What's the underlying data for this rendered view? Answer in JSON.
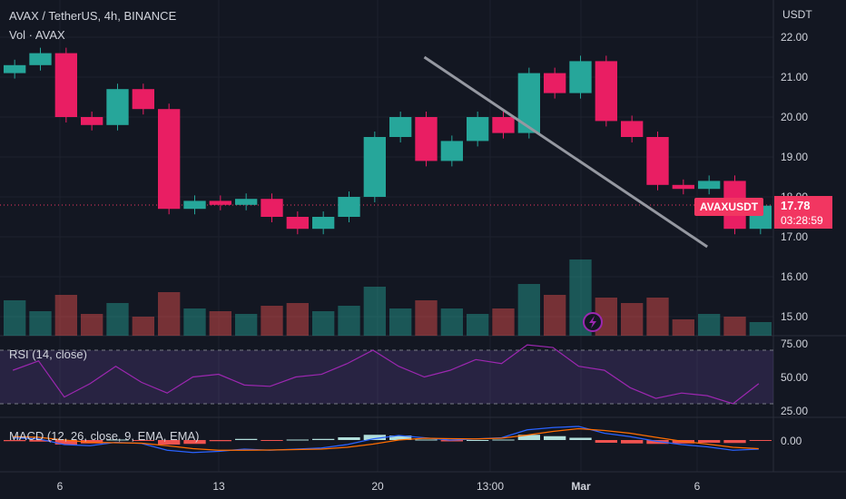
{
  "header": {
    "symbol_line": "AVAX / TetherUS, 4h, BINANCE",
    "volume_label": "Vol · AVAX",
    "rsi_label": "RSI (14, close)",
    "macd_label": "MACD (12, 26, close, 9, EMA, EMA)"
  },
  "price_scale": {
    "currency": "USDT",
    "ticks": [
      "22.00",
      "21.00",
      "20.00",
      "19.00",
      "18.00",
      "17.00",
      "16.00",
      "15.00"
    ]
  },
  "rsi_scale": {
    "ticks": [
      "75.00",
      "50.00",
      "25.00"
    ]
  },
  "macd_scale": {
    "ticks": [
      "0.00"
    ]
  },
  "time_axis": {
    "labels": [
      "6",
      "13",
      "20",
      "13:00",
      "Mar",
      "6"
    ]
  },
  "last_price": {
    "symbol": "AVAXUSDT",
    "price": "17.78",
    "countdown": "03:28:59"
  },
  "colors": {
    "background": "#131722",
    "up": "#26a69a",
    "down": "#ef5350",
    "candle_up": "#26a69a",
    "candle_down": "#e91e63",
    "trendline": "#9598a1",
    "rsi_line": "#9c27b0",
    "rsi_band": "#7e57c2",
    "macd_line": "#2962ff",
    "signal_line": "#ff6d00",
    "badge": "#f23661"
  },
  "icons": {
    "lightning": "lightning-icon"
  },
  "chart_data": {
    "type": "candlestick",
    "price_range": [
      14.8,
      22.2
    ],
    "x": [
      0,
      4,
      8,
      12,
      16,
      20,
      24,
      28,
      32,
      36,
      40,
      44,
      48,
      52,
      56,
      60,
      64,
      68,
      72,
      76,
      80,
      84,
      88,
      92,
      96,
      100,
      104,
      108,
      112,
      116
    ],
    "close": [
      21.3,
      21.6,
      20.0,
      19.8,
      20.7,
      20.2,
      17.7,
      17.9,
      17.8,
      17.95,
      17.5,
      17.2,
      17.5,
      18.0,
      19.5,
      20.0,
      18.9,
      19.4,
      20.0,
      19.6,
      21.1,
      20.6,
      21.4,
      19.9,
      19.5,
      18.3,
      18.2,
      18.4,
      17.2,
      17.78
    ],
    "volume": [
      1.3,
      0.9,
      1.5,
      0.8,
      1.2,
      0.7,
      1.6,
      1.0,
      0.9,
      0.8,
      1.1,
      1.2,
      0.9,
      1.1,
      1.8,
      1.0,
      1.3,
      1.0,
      0.8,
      1.0,
      1.9,
      1.5,
      2.8,
      1.4,
      1.2,
      1.4,
      0.6,
      0.8,
      0.7,
      0.5
    ],
    "trendline": [
      [
        21.5,
        26.5
      ],
      [
        16.75,
        37.5
      ]
    ],
    "rsi": [
      55,
      62,
      35,
      45,
      58,
      46,
      38,
      50,
      52,
      44,
      43,
      50,
      52,
      60,
      70,
      58,
      50,
      55,
      63,
      60,
      74,
      72,
      58,
      55,
      42,
      34,
      38,
      36,
      30,
      45
    ],
    "rsi_bands": [
      70,
      30
    ],
    "rsi_range": [
      22,
      78
    ],
    "macd": [
      0.1,
      0.05,
      -0.2,
      -0.25,
      -0.1,
      -0.15,
      -0.45,
      -0.55,
      -0.5,
      -0.4,
      -0.45,
      -0.4,
      -0.35,
      -0.2,
      0.05,
      0.2,
      0.1,
      0.0,
      0.05,
      0.1,
      0.45,
      0.55,
      0.6,
      0.3,
      0.15,
      -0.05,
      -0.2,
      -0.3,
      -0.45,
      -0.4
    ],
    "signal": [
      0.15,
      0.12,
      0.0,
      -0.1,
      -0.12,
      -0.14,
      -0.25,
      -0.38,
      -0.45,
      -0.45,
      -0.44,
      -0.42,
      -0.4,
      -0.32,
      -0.18,
      0.0,
      0.08,
      0.06,
      0.05,
      0.08,
      0.22,
      0.38,
      0.5,
      0.42,
      0.3,
      0.12,
      -0.05,
      -0.18,
      -0.32,
      -0.38
    ],
    "macd_range": [
      -0.8,
      0.8
    ]
  }
}
